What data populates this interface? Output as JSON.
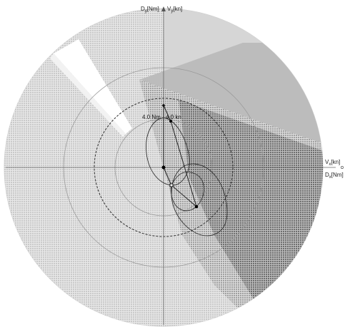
{
  "axes": {
    "y_moment": {
      "main": "D",
      "sub": "y",
      "unit": "[Nm]"
    },
    "y_velocity": {
      "main": "V",
      "sub": "y",
      "unit": "[kn]"
    },
    "x_velocity": {
      "main": "V",
      "sub": "x",
      "unit": "[kn]"
    },
    "x_moment": {
      "main": "D",
      "sub": "x",
      "unit": "[Nm]"
    }
  },
  "ring_labels": {
    "moment": "4.0 Nm",
    "velocity": "4.0 kn"
  },
  "colors": {
    "background": "#ffffff",
    "disc": "#e4e4e4",
    "hatch_light": "#c8c8c8",
    "hatch_mid": "#a8a8a8",
    "hatch_dark": "#7a7a7a",
    "wedge_white": "#ffffff",
    "axis": "#666666",
    "ring": "#aaaaaa",
    "dashed_ring": "#333333",
    "curve": "#333333",
    "marker": "#000000"
  }
}
